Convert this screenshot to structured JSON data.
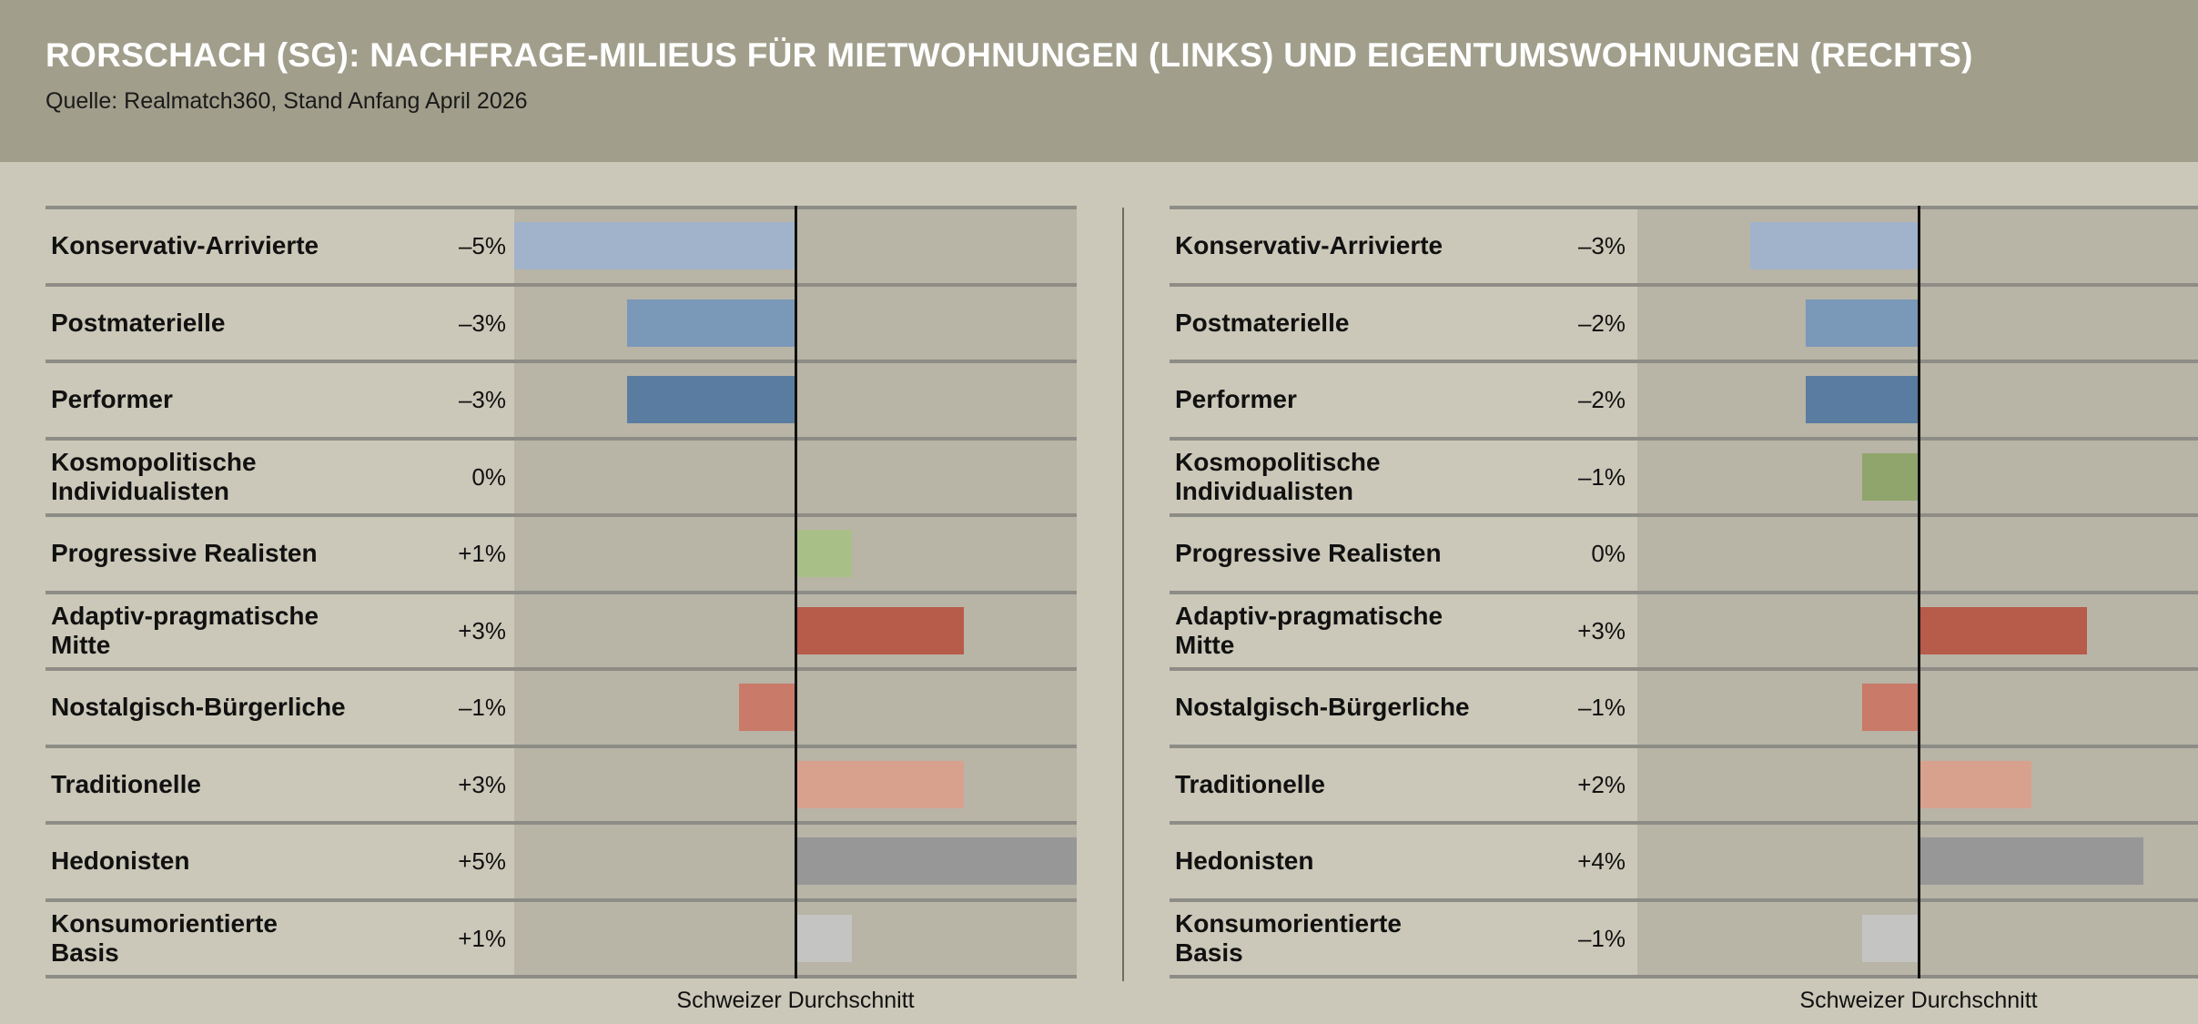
{
  "header": {
    "title": "RORSCHACH (SG): NACHFRAGE-MILIEUS FÜR MIETWOHNUNGEN (LINKS) UND EIGENTUMSWOHNUNGEN (RECHTS)",
    "subtitle": "Quelle: Realmatch360, Stand Anfang April 2026"
  },
  "colors": {
    "Konservativ-Arrivierte": "#a0b3cb",
    "Postmaterielle": "#7a98b8",
    "Performer": "#5a7ca0",
    "Kosmopolitische Individualisten": "#8fa56b",
    "Progressive Realisten": "#a9bf88",
    "Adaptiv-pragmatische Mitte": "#b75b4a",
    "Nostalgisch-Bürgerliche": "#c97a68",
    "Traditionelle": "#d8a18e",
    "Hedonisten": "#979797",
    "Konsumorientierte Basis": "#c4c4c2"
  },
  "chart_data": [
    {
      "type": "bar",
      "orientation": "horizontal",
      "title": "",
      "reference_label": "Schweizer Durchschnitt",
      "xlim": [
        -5,
        5
      ],
      "categories": [
        {
          "line1": "Konservativ-Arrivierte",
          "line2": ""
        },
        {
          "line1": "Postmaterielle",
          "line2": ""
        },
        {
          "line1": "Performer",
          "line2": ""
        },
        {
          "line1": "Kosmopolitische",
          "line2": "Individualisten"
        },
        {
          "line1": "Progressive Realisten",
          "line2": ""
        },
        {
          "line1": "Adaptiv-pragmatische",
          "line2": "Mitte"
        },
        {
          "line1": "Nostalgisch-Bürgerliche",
          "line2": ""
        },
        {
          "line1": "Traditionelle",
          "line2": ""
        },
        {
          "line1": "Hedonisten",
          "line2": ""
        },
        {
          "line1": "Konsumorientierte",
          "line2": "Basis"
        }
      ],
      "values": [
        -5,
        -3,
        -3,
        0,
        1,
        3,
        -1,
        3,
        5,
        1
      ],
      "value_labels": [
        "–5%",
        "–3%",
        "–3%",
        "0%",
        "+1%",
        "+3%",
        "–1%",
        "+3%",
        "+5%",
        "+1%"
      ]
    },
    {
      "type": "bar",
      "orientation": "horizontal",
      "title": "",
      "reference_label": "Schweizer Durchschnitt",
      "xlim": [
        -5,
        5
      ],
      "categories": [
        {
          "line1": "Konservativ-Arrivierte",
          "line2": ""
        },
        {
          "line1": "Postmaterielle",
          "line2": ""
        },
        {
          "line1": "Performer",
          "line2": ""
        },
        {
          "line1": "Kosmopolitische",
          "line2": "Individualisten"
        },
        {
          "line1": "Progressive Realisten",
          "line2": ""
        },
        {
          "line1": "Adaptiv-pragmatische",
          "line2": "Mitte"
        },
        {
          "line1": "Nostalgisch-Bürgerliche",
          "line2": ""
        },
        {
          "line1": "Traditionelle",
          "line2": ""
        },
        {
          "line1": "Hedonisten",
          "line2": ""
        },
        {
          "line1": "Konsumorientierte",
          "line2": "Basis"
        }
      ],
      "values": [
        -3,
        -2,
        -2,
        -1,
        0,
        3,
        -1,
        2,
        4,
        -1
      ],
      "value_labels": [
        "–3%",
        "–2%",
        "–2%",
        "–1%",
        "0%",
        "+3%",
        "–1%",
        "+2%",
        "+4%",
        "–1%"
      ]
    }
  ]
}
